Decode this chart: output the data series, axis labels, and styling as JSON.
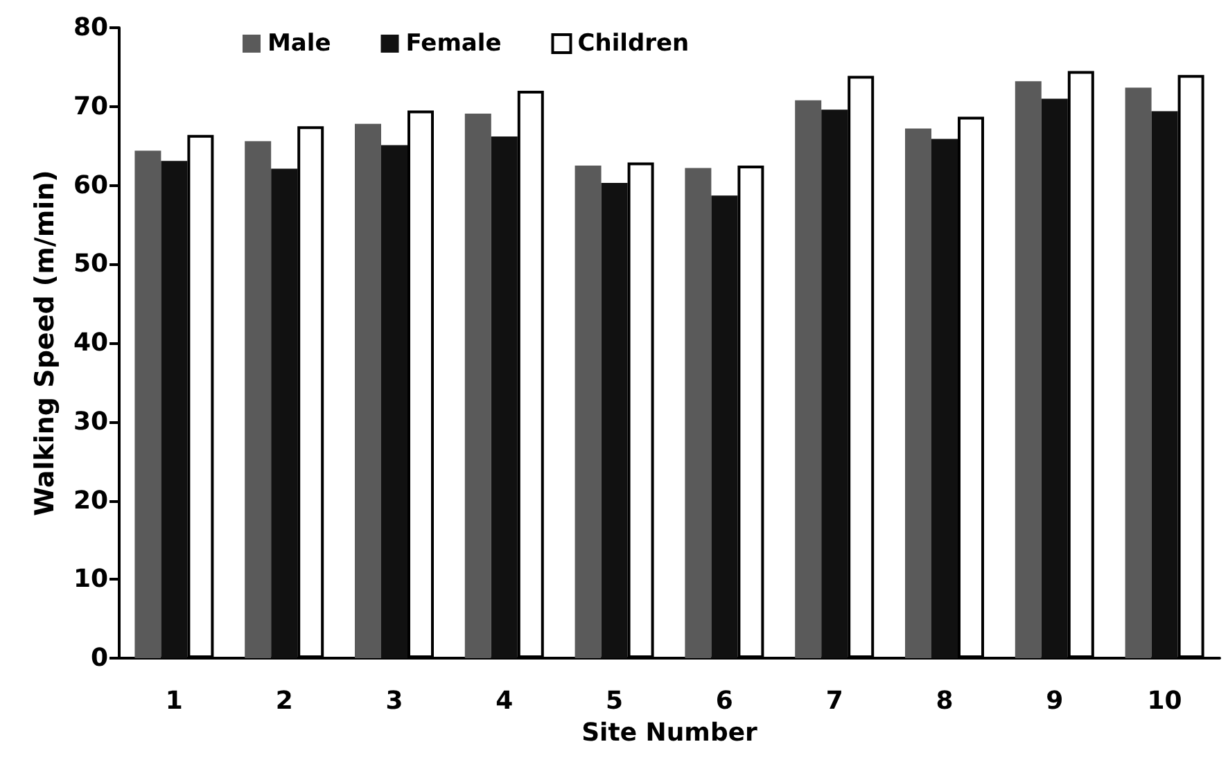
{
  "chart_data": {
    "type": "bar",
    "xlabel": "Site Number",
    "ylabel": "Walking Speed (m/min)",
    "categories": [
      "1",
      "2",
      "3",
      "4",
      "5",
      "6",
      "7",
      "8",
      "9",
      "10"
    ],
    "series": [
      {
        "name": "Male",
        "color": "#5a5a5a",
        "values": [
          64.4,
          65.6,
          67.8,
          69.1,
          62.5,
          62.2,
          70.8,
          67.2,
          73.2,
          72.4
        ]
      },
      {
        "name": "Female",
        "color": "#111111",
        "values": [
          63.1,
          62.1,
          65.1,
          66.2,
          60.3,
          58.7,
          69.6,
          65.9,
          71.0,
          69.4
        ]
      },
      {
        "name": "Children",
        "color": "#ffffff",
        "values": [
          66.4,
          67.5,
          69.5,
          72.0,
          62.9,
          62.5,
          73.9,
          68.7,
          74.5,
          74.0
        ]
      }
    ],
    "ylim": [
      0,
      80
    ],
    "yticks": [
      0,
      10,
      20,
      30,
      40,
      50,
      60,
      70,
      80
    ],
    "grid": false,
    "legend": "top"
  }
}
